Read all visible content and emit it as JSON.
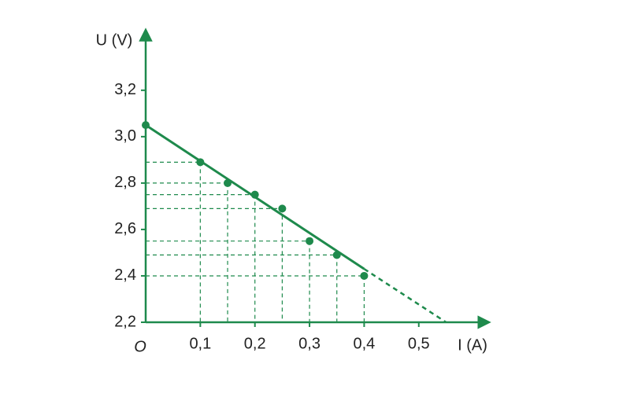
{
  "chart_data": {
    "type": "scatter",
    "color": "#1e8a4c",
    "x_label": "I (A)",
    "y_label": "U (V)",
    "origin_label": "O",
    "x": [
      0,
      0.1,
      0.15,
      0.2,
      0.25,
      0.3,
      0.35,
      0.4
    ],
    "values": [
      3.05,
      2.89,
      2.8,
      2.75,
      2.69,
      2.55,
      2.49,
      2.4
    ],
    "fit": {
      "x": [
        0,
        0.4,
        0.55
      ],
      "values": [
        3.05,
        2.43,
        2.2
      ]
    },
    "xlim": [
      0,
      0.62
    ],
    "ylim": [
      2.2,
      3.44
    ],
    "xticks": [
      {
        "value": 0.1,
        "label": "0,1"
      },
      {
        "value": 0.2,
        "label": "0,2"
      },
      {
        "value": 0.3,
        "label": "0,3"
      },
      {
        "value": 0.4,
        "label": "0,4"
      },
      {
        "value": 0.5,
        "label": "0,5"
      }
    ],
    "yticks": [
      {
        "value": 2.2,
        "label": "2,2"
      },
      {
        "value": 2.4,
        "label": "2,4"
      },
      {
        "value": 2.6,
        "label": "2,6"
      },
      {
        "value": 2.8,
        "label": "2,8"
      },
      {
        "value": 3.0,
        "label": "3,0"
      },
      {
        "value": 3.2,
        "label": "3,2"
      }
    ]
  }
}
